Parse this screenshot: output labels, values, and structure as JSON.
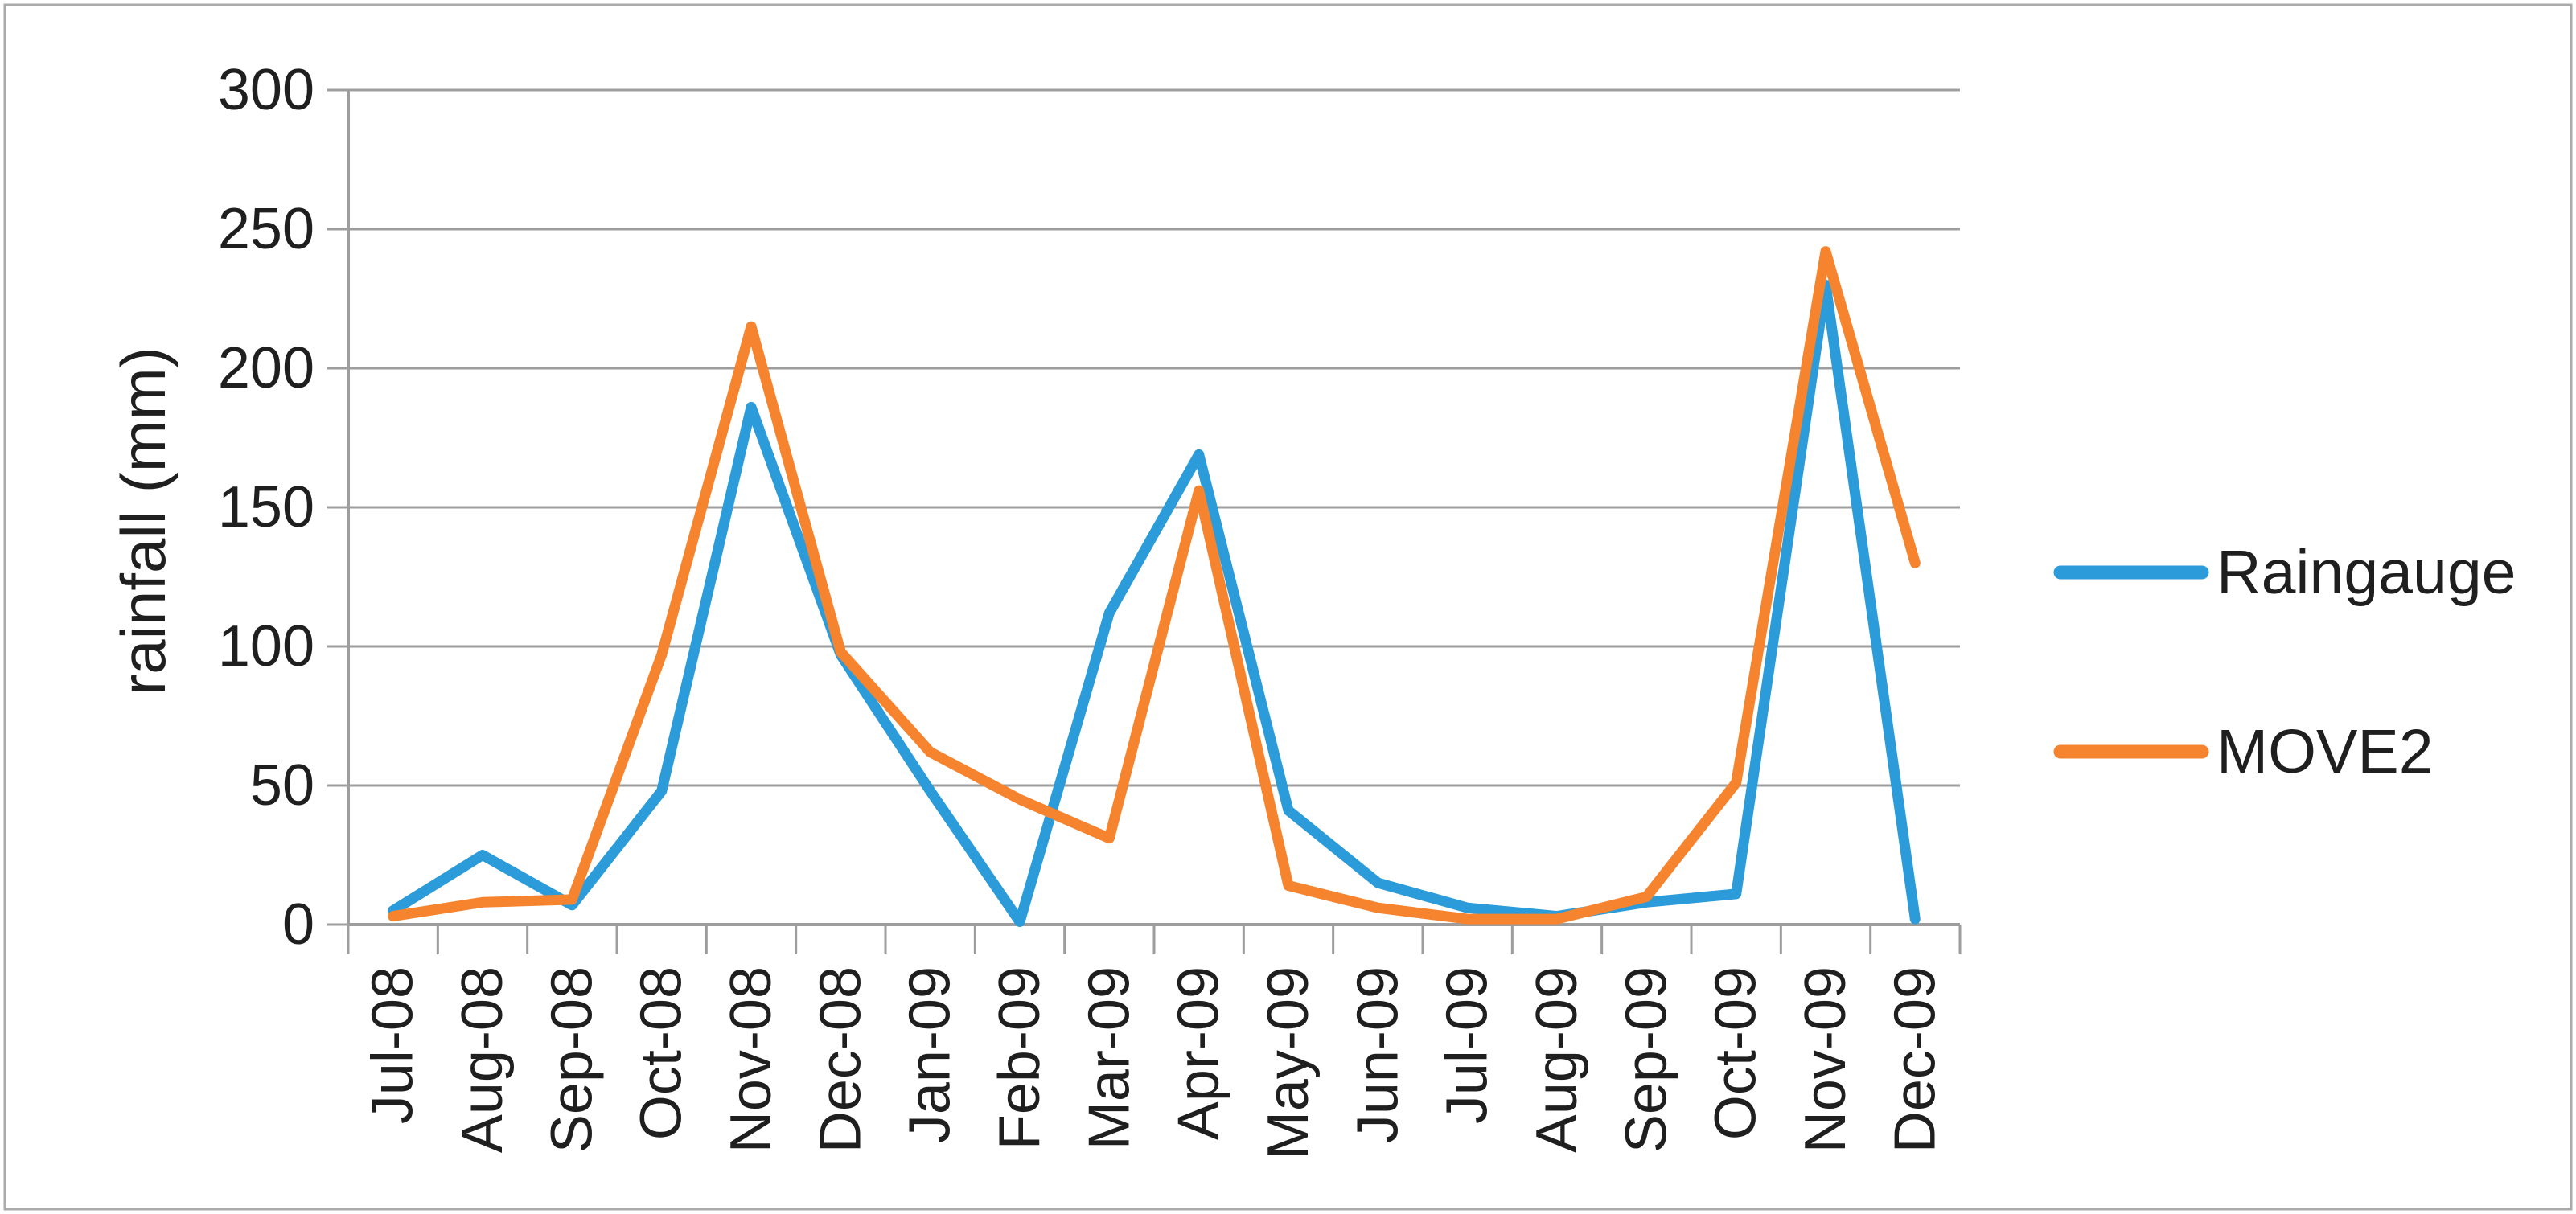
{
  "window": {
    "background": "#ffffff",
    "frame_border_color": "#ababab",
    "axis_color": "#9d9d9d",
    "text_color": "#1f1f1f"
  },
  "chart_data": {
    "type": "line",
    "title": "",
    "xlabel": "",
    "ylabel": "rainfall (mm)",
    "ylim": [
      0,
      300
    ],
    "yticks": [
      0,
      50,
      100,
      150,
      200,
      250,
      300
    ],
    "grid": "horizontal gridlines on",
    "legend_position": "right",
    "categories": [
      "Jul-08",
      "Aug-08",
      "Sep-08",
      "Oct-08",
      "Nov-08",
      "Dec-08",
      "Jan-09",
      "Feb-09",
      "Mar-09",
      "Apr-09",
      "May-09",
      "Jun-09",
      "Jul-09",
      "Aug-09",
      "Sep-09",
      "Oct-09",
      "Nov-09",
      "Dec-09"
    ],
    "series": [
      {
        "name": "Raingauge",
        "color": "#2B9CD9",
        "values": [
          5,
          25,
          7,
          48,
          186,
          97,
          48,
          1,
          112,
          169,
          41,
          15,
          6,
          3,
          8,
          11,
          230,
          2
        ]
      },
      {
        "name": "MOVE2",
        "color": "#F6832E",
        "values": [
          3,
          8,
          9,
          97,
          215,
          98,
          62,
          45,
          31,
          156,
          14,
          6,
          2,
          2,
          10,
          51,
          242,
          130
        ]
      }
    ]
  }
}
